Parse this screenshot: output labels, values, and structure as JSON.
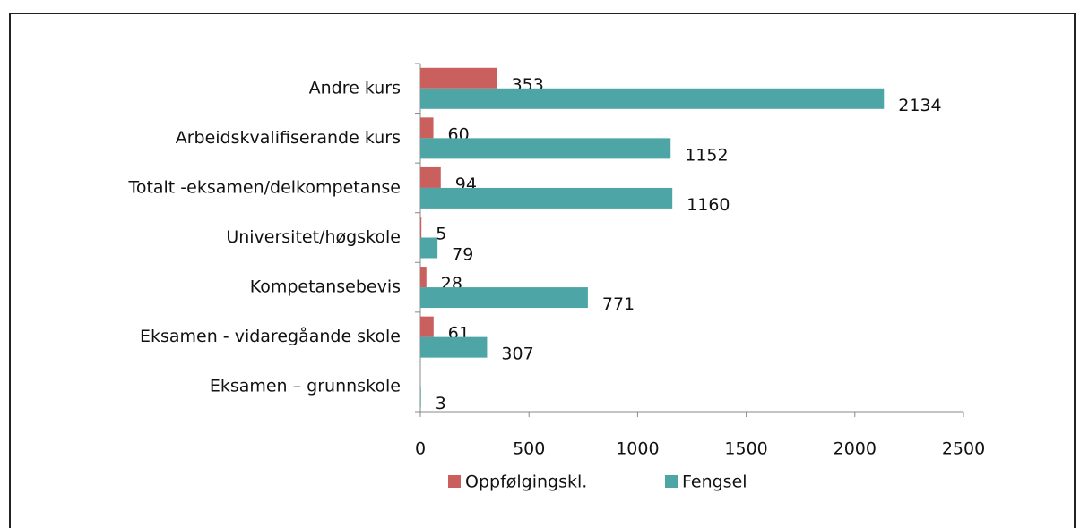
{
  "chart_data": {
    "type": "hbar",
    "categories": [
      "Andre kurs",
      "Arbeidskvalifiserande kurs",
      "Totalt -eksamen/delkompetanse",
      "Universitet/høgskole",
      "Kompetansebevis",
      "Eksamen - vidaregåande skole",
      "Eksamen – grunnskole"
    ],
    "series": [
      {
        "name": "Oppfølgingskl.",
        "color": "#c9605e",
        "values": [
          353,
          60,
          94,
          5,
          28,
          61,
          null
        ]
      },
      {
        "name": "Fengsel",
        "color": "#4ea5a5",
        "values": [
          2134,
          1152,
          1160,
          79,
          771,
          307,
          3
        ]
      }
    ],
    "xlim": [
      0,
      2500
    ],
    "xticks": [
      0,
      500,
      1000,
      1500,
      2000,
      2500
    ]
  }
}
